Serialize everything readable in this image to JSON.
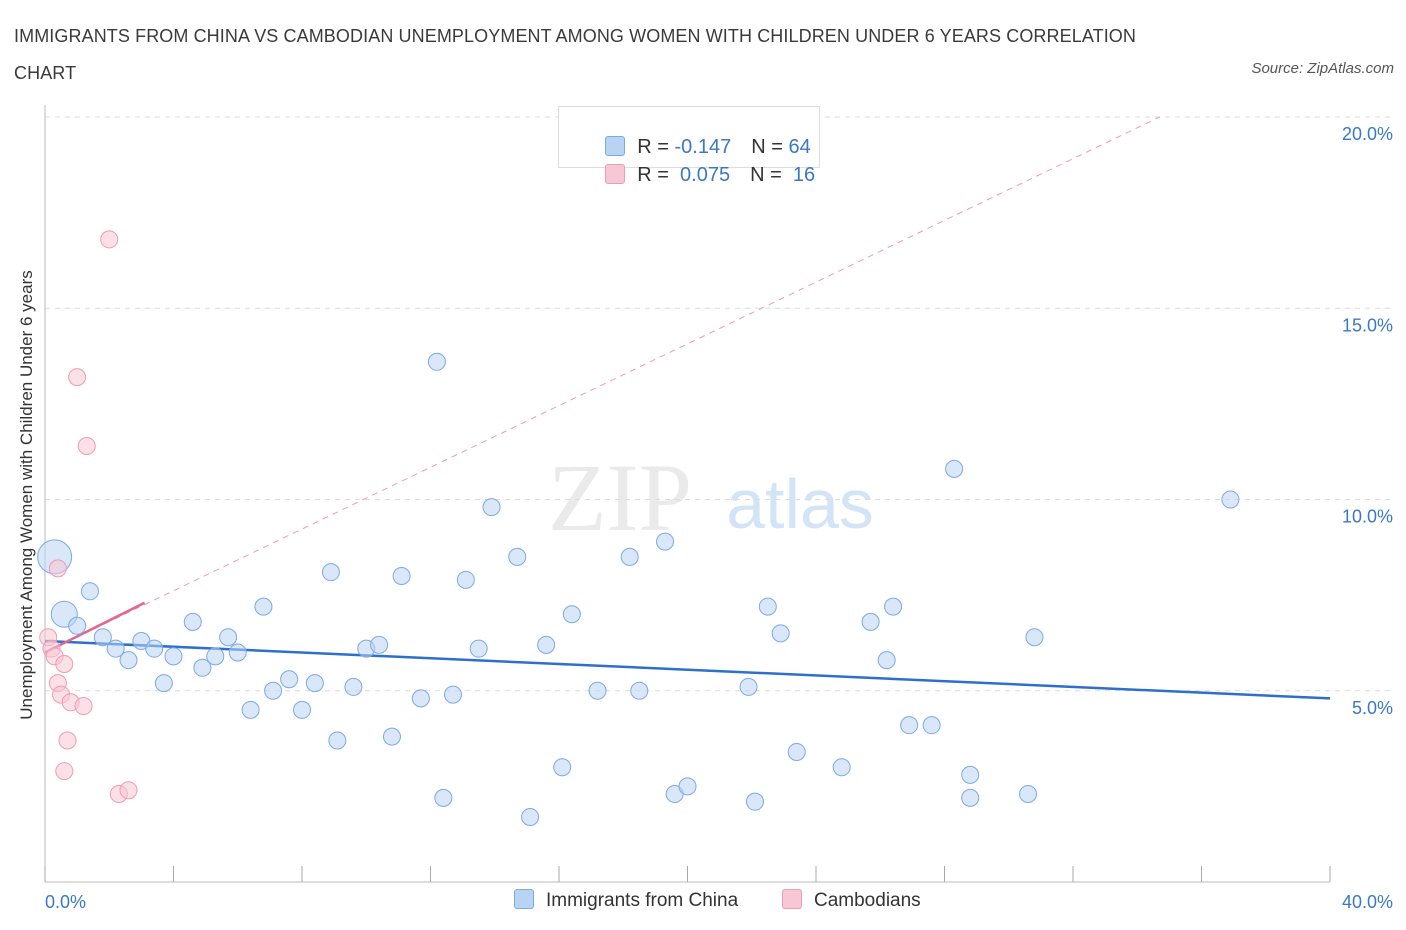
{
  "title": "IMMIGRANTS FROM CHINA VS CAMBODIAN UNEMPLOYMENT AMONG WOMEN WITH CHILDREN UNDER 6 YEARS CORRELATION CHART",
  "source": "Source: ZipAtlas.com",
  "watermark": {
    "zip": "ZIP",
    "atlas": "atlas"
  },
  "colors": {
    "china": "#7aaae6",
    "china_fill": "#b9d3f3",
    "china_line": "#2d6fcb",
    "cambodia": "#ee9bb3",
    "cambodia_fill": "#f8c7d5",
    "cambodia_line": "#e0688f",
    "axis_text": "#3b78c4"
  },
  "legend": {
    "rows": [
      {
        "r_label": "R = ",
        "r_value": "-0.147",
        "n_label": "N = ",
        "n_value": "64"
      },
      {
        "r_label": "R = ",
        "r_value": " 0.075",
        "n_label": "N = ",
        "n_value": " 16"
      }
    ]
  },
  "bottom_legend": {
    "china": "Immigrants from China",
    "cambodia": "Cambodians"
  },
  "chart_data": {
    "type": "scatter",
    "ylabel": "Unemployment Among Women with Children Under 6 years",
    "xlim": [
      0,
      40
    ],
    "ylim": [
      0,
      20
    ],
    "x_tick_labels": [
      "0.0%",
      "40.0%"
    ],
    "y_tick_labels": [
      "5.0%",
      "10.0%",
      "15.0%",
      "20.0%"
    ],
    "y_ticks": [
      5,
      10,
      15,
      20
    ],
    "grid": true,
    "series": [
      {
        "name": "Immigrants from China",
        "r": -0.147,
        "n": 64,
        "trend": {
          "x": [
            0,
            40
          ],
          "y": [
            6.3,
            4.8
          ]
        },
        "points": [
          [
            0.3,
            8.5,
            3
          ],
          [
            0.6,
            7.0,
            2
          ],
          [
            1.4,
            7.6,
            1
          ],
          [
            1.0,
            6.7,
            1
          ],
          [
            1.8,
            6.4,
            1
          ],
          [
            2.2,
            6.1,
            1
          ],
          [
            2.6,
            5.8,
            1
          ],
          [
            3.0,
            6.3,
            1
          ],
          [
            3.4,
            6.1,
            1
          ],
          [
            3.7,
            5.2,
            1
          ],
          [
            4.0,
            5.9,
            1
          ],
          [
            4.6,
            6.8,
            1
          ],
          [
            4.9,
            5.6,
            1
          ],
          [
            5.3,
            5.9,
            1
          ],
          [
            5.7,
            6.4,
            1
          ],
          [
            6.0,
            6.0,
            1
          ],
          [
            6.4,
            4.5,
            1
          ],
          [
            6.8,
            7.2,
            1
          ],
          [
            7.1,
            5.0,
            1
          ],
          [
            7.6,
            5.3,
            1
          ],
          [
            8.0,
            4.5,
            1
          ],
          [
            8.4,
            5.2,
            1
          ],
          [
            8.9,
            8.1,
            1
          ],
          [
            9.1,
            3.7,
            1
          ],
          [
            9.6,
            5.1,
            1
          ],
          [
            10.0,
            6.1,
            1
          ],
          [
            10.4,
            6.2,
            1
          ],
          [
            10.8,
            3.8,
            1
          ],
          [
            11.1,
            8.0,
            1
          ],
          [
            11.7,
            4.8,
            1
          ],
          [
            12.2,
            13.6,
            1
          ],
          [
            12.4,
            2.2,
            1
          ],
          [
            12.7,
            4.9,
            1
          ],
          [
            13.1,
            7.9,
            1
          ],
          [
            13.5,
            6.1,
            1
          ],
          [
            13.9,
            9.8,
            1
          ],
          [
            14.7,
            8.5,
            1
          ],
          [
            15.1,
            1.7,
            1
          ],
          [
            15.6,
            6.2,
            1
          ],
          [
            16.1,
            3.0,
            1
          ],
          [
            16.4,
            7.0,
            1
          ],
          [
            17.2,
            5.0,
            1
          ],
          [
            18.2,
            8.5,
            1
          ],
          [
            18.5,
            5.0,
            1
          ],
          [
            19.3,
            8.9,
            1
          ],
          [
            19.6,
            2.3,
            1
          ],
          [
            20.0,
            2.5,
            1
          ],
          [
            21.9,
            5.1,
            1
          ],
          [
            22.1,
            2.1,
            1
          ],
          [
            22.5,
            7.2,
            1
          ],
          [
            22.9,
            6.5,
            1
          ],
          [
            23.4,
            3.4,
            1
          ],
          [
            24.8,
            3.0,
            1
          ],
          [
            25.7,
            6.8,
            1
          ],
          [
            26.2,
            5.8,
            1
          ],
          [
            26.4,
            7.2,
            1
          ],
          [
            26.9,
            4.1,
            1
          ],
          [
            27.6,
            4.1,
            1
          ],
          [
            28.3,
            10.8,
            1
          ],
          [
            28.8,
            2.8,
            1
          ],
          [
            28.8,
            2.2,
            1
          ],
          [
            30.6,
            2.3,
            1
          ],
          [
            30.8,
            6.4,
            1
          ],
          [
            36.9,
            10.0,
            1
          ]
        ]
      },
      {
        "name": "Cambodians",
        "r": 0.075,
        "n": 16,
        "trend": {
          "x": [
            0,
            3.1
          ],
          "y": [
            6.0,
            7.3
          ]
        },
        "trend_extended": {
          "x": [
            0,
            34.7
          ],
          "y": [
            6.0,
            20.0
          ]
        },
        "points": [
          [
            0.1,
            6.4,
            1
          ],
          [
            0.2,
            6.1,
            1
          ],
          [
            0.3,
            5.9,
            1
          ],
          [
            0.4,
            8.2,
            1
          ],
          [
            0.4,
            5.2,
            1
          ],
          [
            0.5,
            4.9,
            1
          ],
          [
            0.6,
            5.7,
            1
          ],
          [
            0.7,
            3.7,
            1
          ],
          [
            0.8,
            4.7,
            1
          ],
          [
            0.6,
            2.9,
            1
          ],
          [
            1.0,
            13.2,
            1
          ],
          [
            1.3,
            11.4,
            1
          ],
          [
            1.2,
            4.6,
            1
          ],
          [
            2.0,
            16.8,
            1
          ],
          [
            2.3,
            2.3,
            1
          ],
          [
            2.6,
            2.4,
            1
          ]
        ]
      }
    ]
  }
}
